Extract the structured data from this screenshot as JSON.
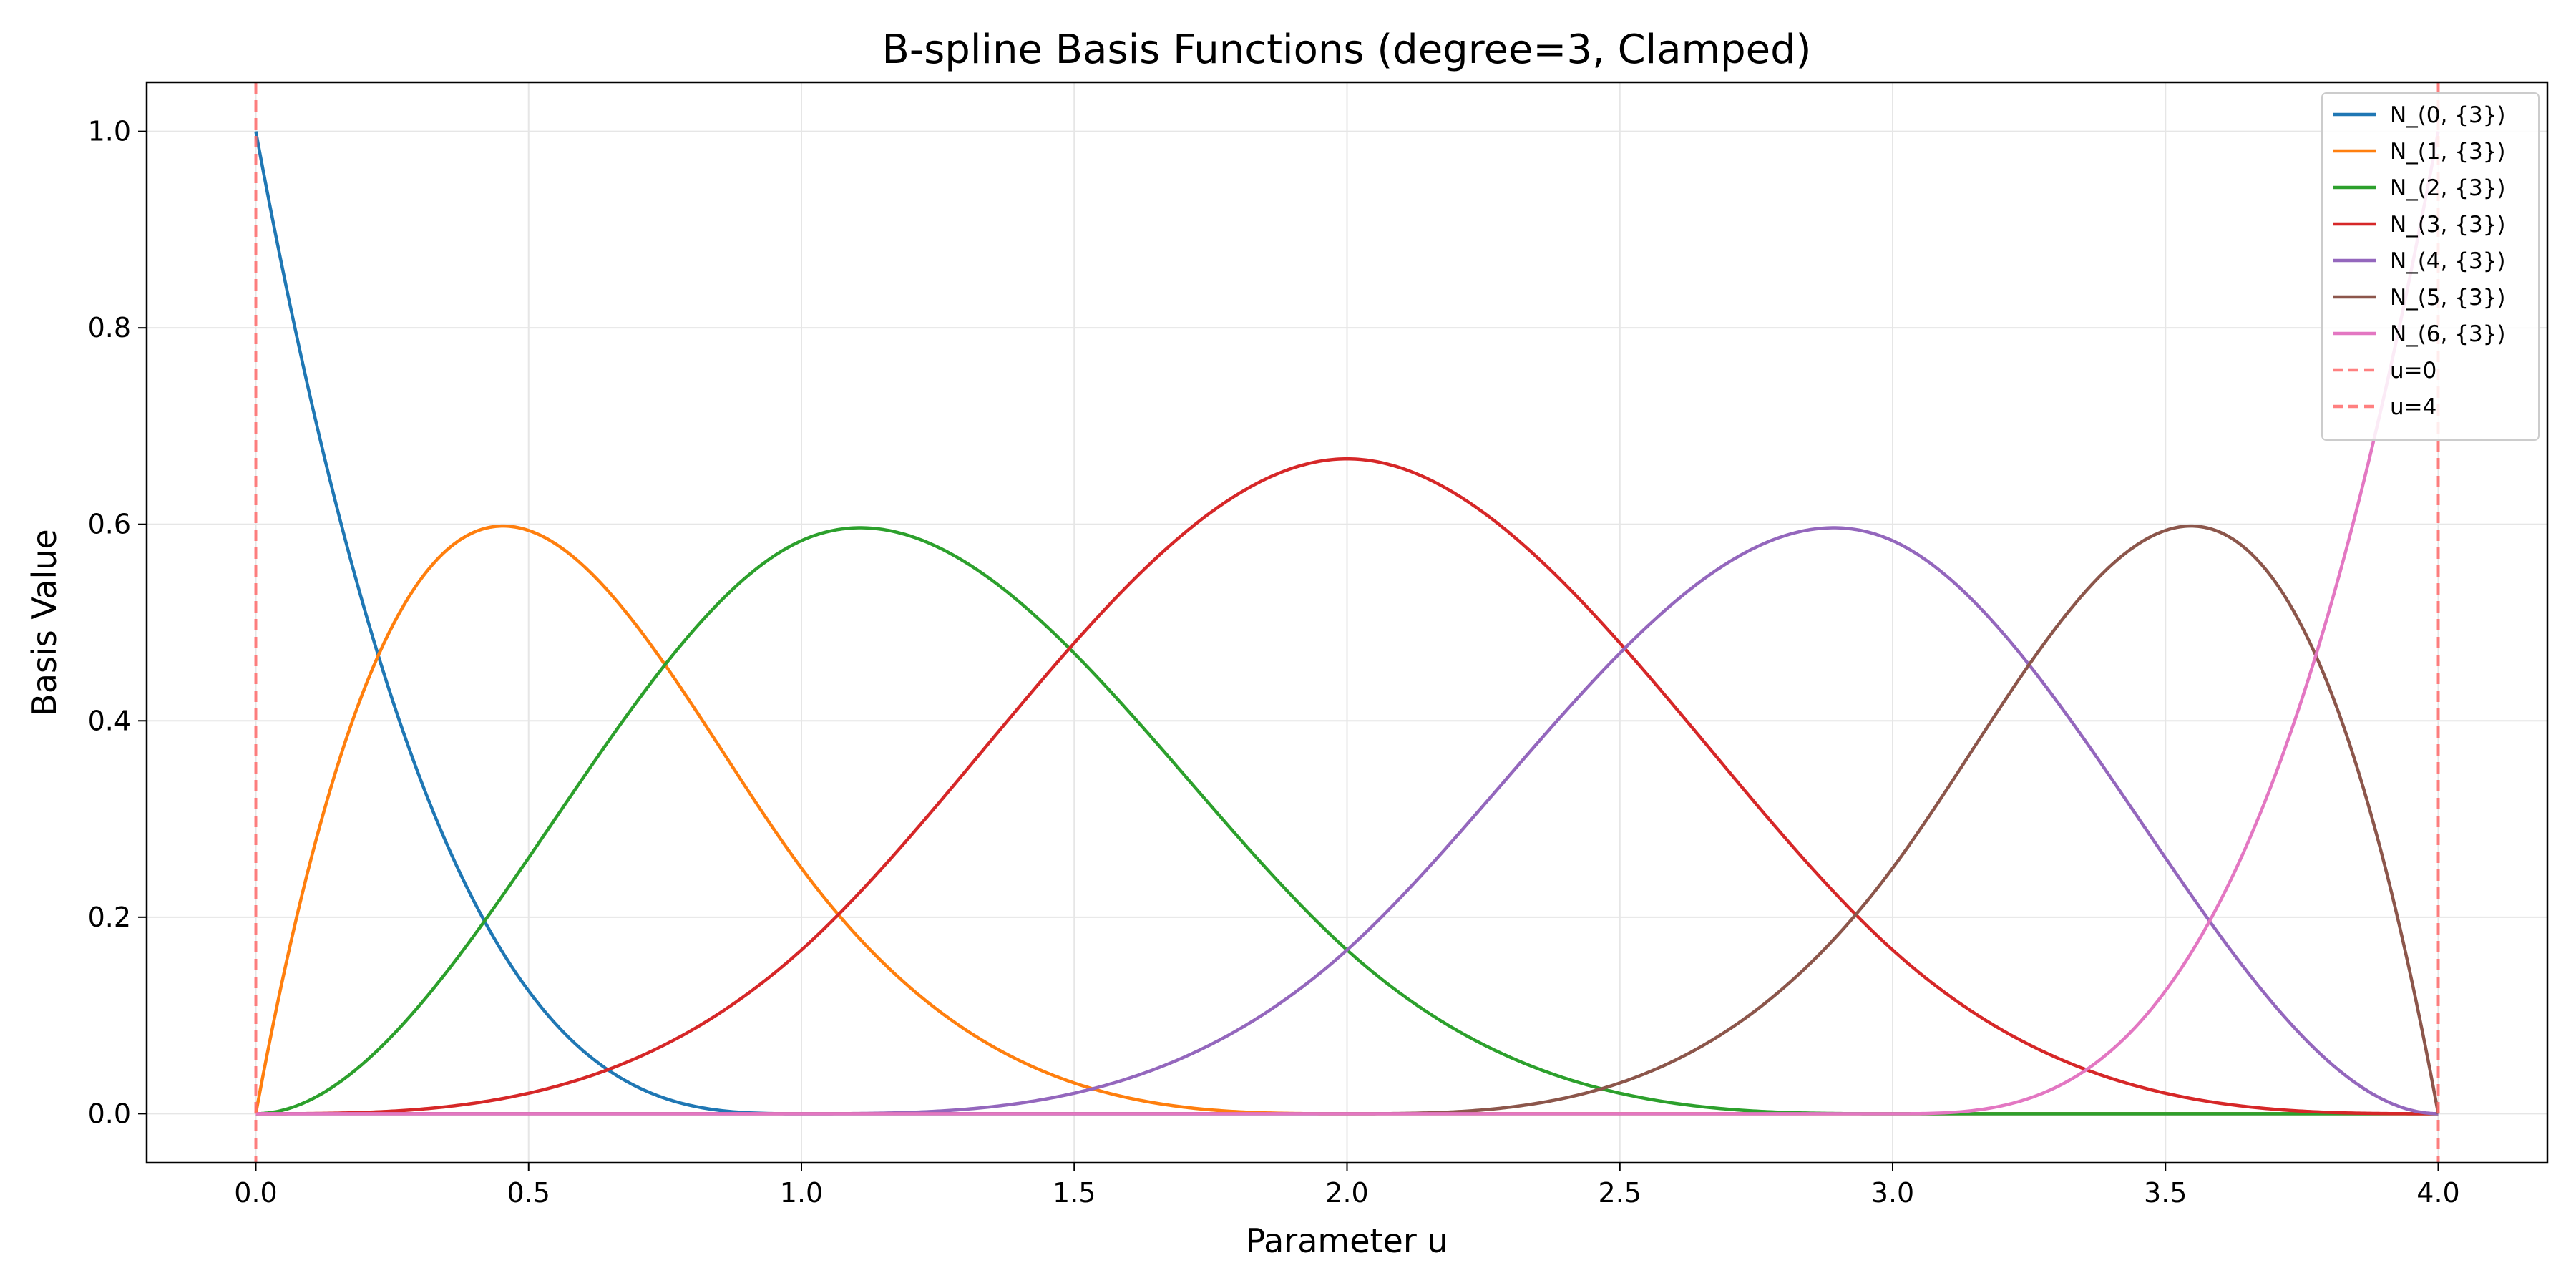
{
  "chart_data": {
    "type": "line",
    "title": "B-spline Basis Functions (degree=3, Clamped)",
    "xlabel": "Parameter u",
    "ylabel": "Basis Value",
    "xlim": [
      -0.2,
      4.2
    ],
    "ylim": [
      -0.05,
      1.05
    ],
    "xticks": [
      0.0,
      0.5,
      1.0,
      1.5,
      2.0,
      2.5,
      3.0,
      3.5,
      4.0
    ],
    "xtick_labels": [
      "0.0",
      "0.5",
      "1.0",
      "1.5",
      "2.0",
      "2.5",
      "3.0",
      "3.5",
      "4.0"
    ],
    "yticks": [
      0.0,
      0.2,
      0.4,
      0.6,
      0.8,
      1.0
    ],
    "ytick_labels": [
      "0.0",
      "0.2",
      "0.4",
      "0.6",
      "0.8",
      "1.0"
    ],
    "grid": true,
    "legend_position": "top-right",
    "degree": 3,
    "knots": [
      0,
      0,
      0,
      0,
      1,
      2,
      3,
      4,
      4,
      4,
      4
    ],
    "series": [
      {
        "name": "N_(0, {3})",
        "color": "#1f77b4",
        "style": "solid",
        "x": [
          0.0,
          0.1,
          0.2,
          0.3,
          0.4,
          0.5,
          0.6,
          0.7,
          0.8,
          0.9,
          1.0,
          1.5,
          2.0,
          3.0,
          4.0
        ],
        "y": [
          1.0,
          0.729,
          0.512,
          0.343,
          0.216,
          0.125,
          0.064,
          0.027,
          0.008,
          0.001,
          0.0,
          0.0,
          0.0,
          0.0,
          0.0
        ]
      },
      {
        "name": "N_(1, {3})",
        "color": "#ff7f0e",
        "style": "solid",
        "x": [
          0.0,
          0.25,
          0.45,
          0.5,
          0.75,
          1.0,
          1.25,
          1.5,
          1.75,
          2.0,
          3.0,
          4.0
        ],
        "y": [
          0.0,
          0.49,
          0.598,
          0.594,
          0.47,
          0.25,
          0.105,
          0.031,
          0.004,
          0.0,
          0.0,
          0.0
        ]
      },
      {
        "name": "N_(2, {3})",
        "color": "#2ca02c",
        "style": "solid",
        "x": [
          0.0,
          0.25,
          0.5,
          0.75,
          1.0,
          1.1,
          1.25,
          1.5,
          1.75,
          2.0,
          2.5,
          3.0,
          4.0
        ],
        "y": [
          0.0,
          0.055,
          0.229,
          0.436,
          0.583,
          0.596,
          0.586,
          0.479,
          0.321,
          0.167,
          0.021,
          0.0,
          0.0
        ]
      },
      {
        "name": "N_(3, {3})",
        "color": "#d62728",
        "style": "solid",
        "x": [
          0.0,
          0.5,
          1.0,
          1.5,
          2.0,
          2.5,
          3.0,
          3.5,
          4.0
        ],
        "y": [
          0.0,
          0.021,
          0.167,
          0.479,
          0.667,
          0.479,
          0.167,
          0.021,
          0.0
        ]
      },
      {
        "name": "N_(4, {3})",
        "color": "#9467bd",
        "style": "solid",
        "x": [
          0.0,
          1.0,
          1.5,
          2.0,
          2.25,
          2.5,
          2.75,
          2.9,
          3.0,
          3.25,
          3.5,
          3.75,
          4.0
        ],
        "y": [
          0.0,
          0.0,
          0.021,
          0.167,
          0.321,
          0.479,
          0.586,
          0.596,
          0.583,
          0.436,
          0.229,
          0.055,
          0.0
        ]
      },
      {
        "name": "N_(5, {3})",
        "color": "#8c564b",
        "style": "solid",
        "x": [
          0.0,
          2.0,
          2.25,
          2.5,
          2.75,
          3.0,
          3.25,
          3.5,
          3.55,
          3.75,
          4.0
        ],
        "y": [
          0.0,
          0.0,
          0.004,
          0.031,
          0.105,
          0.25,
          0.47,
          0.594,
          0.598,
          0.49,
          0.0
        ]
      },
      {
        "name": "N_(6, {3})",
        "color": "#e377c2",
        "style": "solid",
        "x": [
          0.0,
          3.0,
          3.1,
          3.2,
          3.3,
          3.4,
          3.5,
          3.6,
          3.7,
          3.8,
          3.9,
          4.0
        ],
        "y": [
          0.0,
          0.0,
          0.001,
          0.008,
          0.027,
          0.064,
          0.125,
          0.216,
          0.343,
          0.512,
          0.729,
          1.0
        ]
      },
      {
        "name": "u=0",
        "color": "#ff6b6b",
        "style": "dashed",
        "vertical_line": 0.0
      },
      {
        "name": "u=4",
        "color": "#ff6b6b",
        "style": "dashed",
        "vertical_line": 4.0
      }
    ]
  }
}
